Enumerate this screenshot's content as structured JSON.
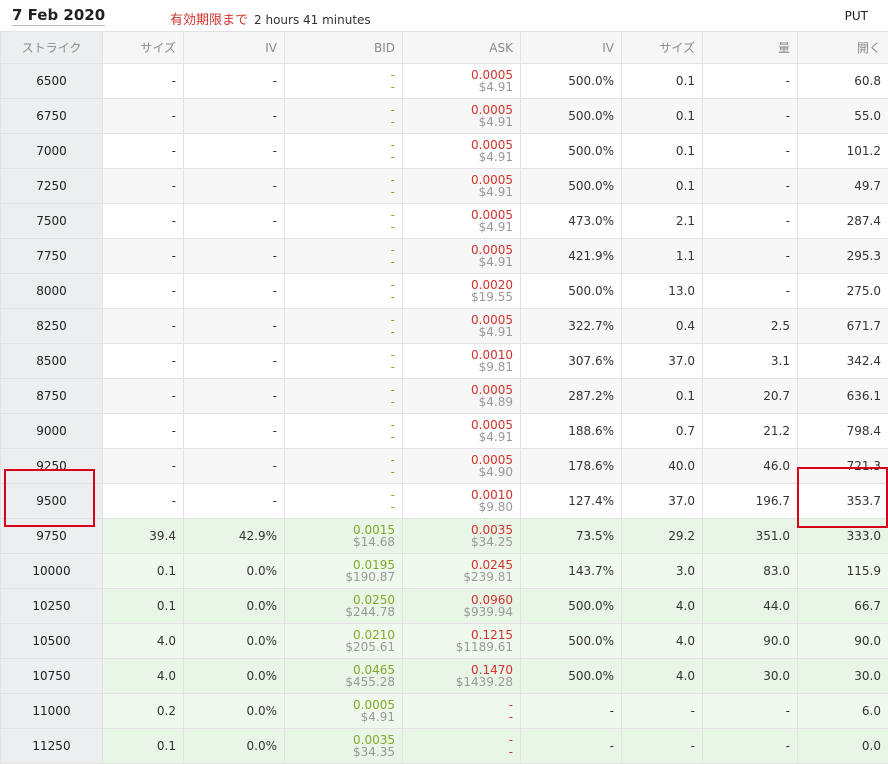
{
  "header": {
    "date": "7 Feb 2020",
    "expiry_label": "有効期限まで",
    "remaining": "2 hours 41 minutes",
    "type_label": "PUT"
  },
  "columns": [
    "ストライク",
    "サイズ",
    "IV",
    "BID",
    "ASK",
    "IV",
    "サイズ",
    "量",
    "開く"
  ],
  "rows": [
    {
      "strike": "6500",
      "bsize": "-",
      "biv": "-",
      "bid": "-",
      "bid_usd": "-",
      "ask": "0.0005",
      "ask_usd": "$4.91",
      "aiv": "500.0%",
      "asize": "0.1",
      "vol": "-",
      "open": "60.8"
    },
    {
      "strike": "6750",
      "bsize": "-",
      "biv": "-",
      "bid": "-",
      "bid_usd": "-",
      "ask": "0.0005",
      "ask_usd": "$4.91",
      "aiv": "500.0%",
      "asize": "0.1",
      "vol": "-",
      "open": "55.0"
    },
    {
      "strike": "7000",
      "bsize": "-",
      "biv": "-",
      "bid": "-",
      "bid_usd": "-",
      "ask": "0.0005",
      "ask_usd": "$4.91",
      "aiv": "500.0%",
      "asize": "0.1",
      "vol": "-",
      "open": "101.2"
    },
    {
      "strike": "7250",
      "bsize": "-",
      "biv": "-",
      "bid": "-",
      "bid_usd": "-",
      "ask": "0.0005",
      "ask_usd": "$4.91",
      "aiv": "500.0%",
      "asize": "0.1",
      "vol": "-",
      "open": "49.7"
    },
    {
      "strike": "7500",
      "bsize": "-",
      "biv": "-",
      "bid": "-",
      "bid_usd": "-",
      "ask": "0.0005",
      "ask_usd": "$4.91",
      "aiv": "473.0%",
      "asize": "2.1",
      "vol": "-",
      "open": "287.4"
    },
    {
      "strike": "7750",
      "bsize": "-",
      "biv": "-",
      "bid": "-",
      "bid_usd": "-",
      "ask": "0.0005",
      "ask_usd": "$4.91",
      "aiv": "421.9%",
      "asize": "1.1",
      "vol": "-",
      "open": "295.3"
    },
    {
      "strike": "8000",
      "bsize": "-",
      "biv": "-",
      "bid": "-",
      "bid_usd": "-",
      "ask": "0.0020",
      "ask_usd": "$19.55",
      "aiv": "500.0%",
      "asize": "13.0",
      "vol": "-",
      "open": "275.0"
    },
    {
      "strike": "8250",
      "bsize": "-",
      "biv": "-",
      "bid": "-",
      "bid_usd": "-",
      "ask": "0.0005",
      "ask_usd": "$4.91",
      "aiv": "322.7%",
      "asize": "0.4",
      "vol": "2.5",
      "open": "671.7"
    },
    {
      "strike": "8500",
      "bsize": "-",
      "biv": "-",
      "bid": "-",
      "bid_usd": "-",
      "ask": "0.0010",
      "ask_usd": "$9.81",
      "aiv": "307.6%",
      "asize": "37.0",
      "vol": "3.1",
      "open": "342.4"
    },
    {
      "strike": "8750",
      "bsize": "-",
      "biv": "-",
      "bid": "-",
      "bid_usd": "-",
      "ask": "0.0005",
      "ask_usd": "$4.89",
      "aiv": "287.2%",
      "asize": "0.1",
      "vol": "20.7",
      "open": "636.1"
    },
    {
      "strike": "9000",
      "bsize": "-",
      "biv": "-",
      "bid": "-",
      "bid_usd": "-",
      "ask": "0.0005",
      "ask_usd": "$4.91",
      "aiv": "188.6%",
      "asize": "0.7",
      "vol": "21.2",
      "open": "798.4"
    },
    {
      "strike": "9250",
      "bsize": "-",
      "biv": "-",
      "bid": "-",
      "bid_usd": "-",
      "ask": "0.0005",
      "ask_usd": "$4.90",
      "aiv": "178.6%",
      "asize": "40.0",
      "vol": "46.0",
      "open": "721.3"
    },
    {
      "strike": "9500",
      "bsize": "-",
      "biv": "-",
      "bid": "-",
      "bid_usd": "-",
      "ask": "0.0010",
      "ask_usd": "$9.80",
      "aiv": "127.4%",
      "asize": "37.0",
      "vol": "196.7",
      "open": "353.7"
    },
    {
      "strike": "9750",
      "bsize": "39.4",
      "biv": "42.9%",
      "bid": "0.0015",
      "bid_usd": "$14.68",
      "ask": "0.0035",
      "ask_usd": "$34.25",
      "aiv": "73.5%",
      "asize": "29.2",
      "vol": "351.0",
      "open": "333.0",
      "itm": true
    },
    {
      "strike": "10000",
      "bsize": "0.1",
      "biv": "0.0%",
      "bid": "0.0195",
      "bid_usd": "$190.87",
      "ask": "0.0245",
      "ask_usd": "$239.81",
      "aiv": "143.7%",
      "asize": "3.0",
      "vol": "83.0",
      "open": "115.9",
      "itm": true
    },
    {
      "strike": "10250",
      "bsize": "0.1",
      "biv": "0.0%",
      "bid": "0.0250",
      "bid_usd": "$244.78",
      "ask": "0.0960",
      "ask_usd": "$939.94",
      "aiv": "500.0%",
      "asize": "4.0",
      "vol": "44.0",
      "open": "66.7",
      "itm": true
    },
    {
      "strike": "10500",
      "bsize": "4.0",
      "biv": "0.0%",
      "bid": "0.0210",
      "bid_usd": "$205.61",
      "ask": "0.1215",
      "ask_usd": "$1189.61",
      "aiv": "500.0%",
      "asize": "4.0",
      "vol": "90.0",
      "open": "90.0",
      "itm": true
    },
    {
      "strike": "10750",
      "bsize": "4.0",
      "biv": "0.0%",
      "bid": "0.0465",
      "bid_usd": "$455.28",
      "ask": "0.1470",
      "ask_usd": "$1439.28",
      "aiv": "500.0%",
      "asize": "4.0",
      "vol": "30.0",
      "open": "30.0",
      "itm": true
    },
    {
      "strike": "11000",
      "bsize": "0.2",
      "biv": "0.0%",
      "bid": "0.0005",
      "bid_usd": "$4.91",
      "ask": "-",
      "ask_usd": "-",
      "aiv": "-",
      "asize": "-",
      "vol": "-",
      "open": "6.0",
      "itm": true
    },
    {
      "strike": "11250",
      "bsize": "0.1",
      "biv": "0.0%",
      "bid": "0.0035",
      "bid_usd": "$34.35",
      "ask": "-",
      "ask_usd": "-",
      "aiv": "-",
      "asize": "-",
      "vol": "-",
      "open": "0.0",
      "itm": true
    }
  ],
  "colors": {
    "bid": "#80aa2a",
    "ask": "#d0342c",
    "highlight": "#d9001b"
  }
}
